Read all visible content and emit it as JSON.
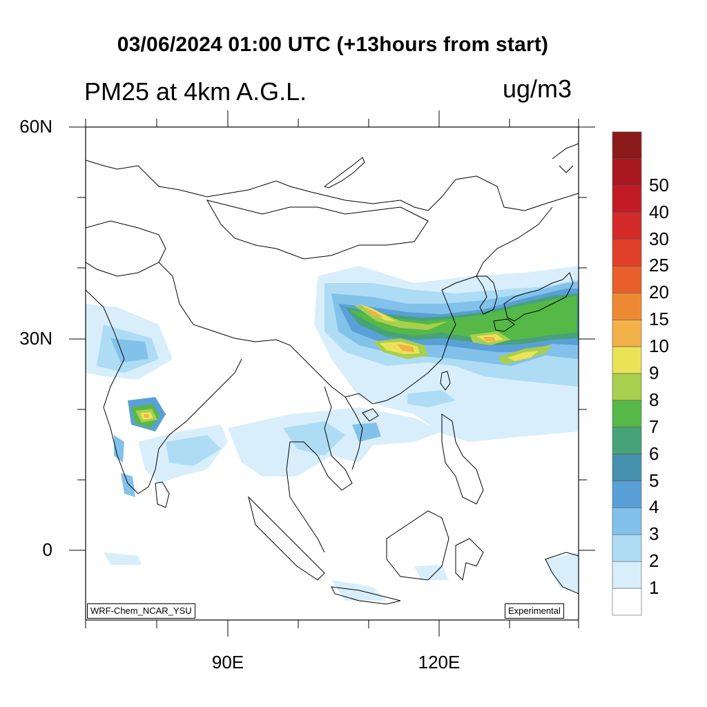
{
  "title": "03/06/2024 01:00 UTC (+13hours from start)",
  "subtitle": "PM25 at 4km A.G.L.",
  "units": "ug/m3",
  "latitude_labels": [
    "60N",
    "30N",
    "0"
  ],
  "longitude_labels": [
    "90E",
    "120E"
  ],
  "model_tag": "WRF-Chem_NCAR_YSU",
  "status_tag": "Experimental",
  "colorbar": {
    "labels": [
      "50",
      "40",
      "30",
      "25",
      "20",
      "15",
      "10",
      "9",
      "8",
      "7",
      "6",
      "5",
      "4",
      "3",
      "2",
      "1"
    ],
    "colors": [
      "#8b1a1a",
      "#a8181e",
      "#c21b26",
      "#d42a2a",
      "#e0402a",
      "#e85f2c",
      "#ef8a34",
      "#f3b14a",
      "#ebe357",
      "#a8cf4e",
      "#56b847",
      "#47a27a",
      "#4591ae",
      "#5aa0d8",
      "#82c1ea",
      "#aedcf4",
      "#d8eefb",
      "#ffffff"
    ]
  },
  "map_extent": {
    "lon_range": [
      "70E",
      "140E"
    ],
    "lat_range": [
      "10S",
      "60N"
    ]
  }
}
